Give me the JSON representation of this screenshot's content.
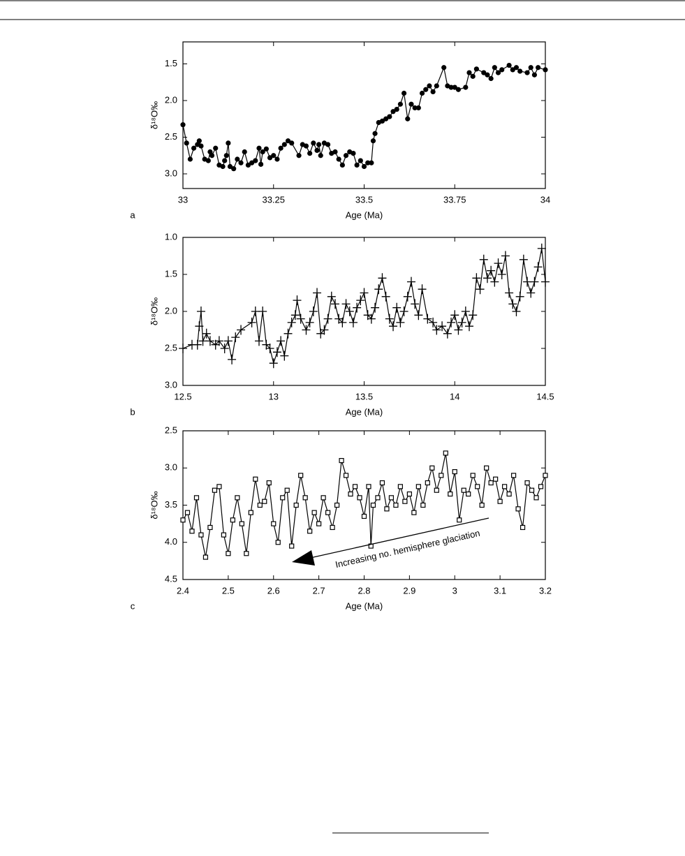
{
  "chart_data": [
    {
      "type": "line",
      "panel_label": "a",
      "x_label": "Age (Ma)",
      "y_label": "δ¹⁸O‰",
      "marker": "circle",
      "color": "#000000",
      "xlim": [
        33,
        34
      ],
      "ylim": [
        3.2,
        1.2
      ],
      "xticks": [
        33,
        33.25,
        33.5,
        33.75,
        34
      ],
      "yticks": [
        1.5,
        {
          "value": 2.0,
          "label": "2.0"
        },
        2.5,
        {
          "value": 3.0,
          "label": "3.0"
        }
      ],
      "x": [
        33.0,
        33.01,
        33.02,
        33.03,
        33.04,
        33.045,
        33.05,
        33.06,
        33.07,
        33.075,
        33.08,
        33.09,
        33.1,
        33.11,
        33.115,
        33.12,
        33.125,
        33.13,
        33.14,
        33.15,
        33.16,
        33.17,
        33.18,
        33.19,
        33.2,
        33.21,
        33.215,
        33.22,
        33.23,
        33.24,
        33.25,
        33.26,
        33.27,
        33.28,
        33.29,
        33.3,
        33.32,
        33.33,
        33.34,
        33.35,
        33.36,
        33.37,
        33.375,
        33.38,
        33.39,
        33.4,
        33.41,
        33.42,
        33.43,
        33.44,
        33.45,
        33.46,
        33.47,
        33.48,
        33.49,
        33.5,
        33.51,
        33.52,
        33.525,
        33.53,
        33.54,
        33.55,
        33.56,
        33.57,
        33.58,
        33.59,
        33.6,
        33.61,
        33.62,
        33.63,
        33.64,
        33.65,
        33.66,
        33.67,
        33.68,
        33.69,
        33.7,
        33.72,
        33.73,
        33.74,
        33.75,
        33.76,
        33.78,
        33.79,
        33.8,
        33.81,
        33.83,
        33.84,
        33.85,
        33.86,
        33.87,
        33.88,
        33.9,
        33.91,
        33.92,
        33.93,
        33.95,
        33.96,
        33.97,
        33.98,
        34.0
      ],
      "values": [
        2.33,
        2.58,
        2.8,
        2.65,
        2.6,
        2.55,
        2.62,
        2.8,
        2.82,
        2.7,
        2.75,
        2.65,
        2.88,
        2.9,
        2.82,
        2.75,
        2.58,
        2.9,
        2.93,
        2.8,
        2.85,
        2.7,
        2.88,
        2.85,
        2.82,
        2.65,
        2.87,
        2.7,
        2.66,
        2.78,
        2.75,
        2.8,
        2.65,
        2.6,
        2.55,
        2.58,
        2.75,
        2.6,
        2.62,
        2.72,
        2.58,
        2.68,
        2.6,
        2.75,
        2.58,
        2.6,
        2.72,
        2.7,
        2.8,
        2.88,
        2.75,
        2.7,
        2.72,
        2.88,
        2.82,
        2.9,
        2.85,
        2.85,
        2.55,
        2.45,
        2.3,
        2.28,
        2.25,
        2.22,
        2.15,
        2.12,
        2.05,
        1.9,
        2.25,
        2.05,
        2.1,
        2.1,
        1.9,
        1.85,
        1.8,
        1.88,
        1.8,
        1.55,
        1.8,
        1.82,
        1.82,
        1.85,
        1.82,
        1.62,
        1.67,
        1.57,
        1.62,
        1.65,
        1.7,
        1.55,
        1.62,
        1.58,
        1.52,
        1.58,
        1.55,
        1.6,
        1.62,
        1.55,
        1.65,
        1.55,
        1.58
      ]
    },
    {
      "type": "line",
      "panel_label": "b",
      "x_label": "Age (Ma)",
      "y_label": "δ¹⁸O‰",
      "marker": "plus",
      "color": "#000000",
      "xlim": [
        12.5,
        14.5
      ],
      "ylim": [
        3.0,
        1.0
      ],
      "xticks": [
        12.5,
        13,
        13.5,
        14,
        14.5
      ],
      "yticks": [
        {
          "value": 1.0,
          "label": "1.0"
        },
        1.5,
        {
          "value": 2.0,
          "label": "2.0"
        },
        2.5,
        {
          "value": 3.0,
          "label": "3.0"
        }
      ],
      "x": [
        12.5,
        12.55,
        12.58,
        12.59,
        12.6,
        12.61,
        12.63,
        12.65,
        12.68,
        12.7,
        12.73,
        12.75,
        12.77,
        12.79,
        12.82,
        12.88,
        12.9,
        12.92,
        12.94,
        12.96,
        12.98,
        13.0,
        13.02,
        13.04,
        13.06,
        13.08,
        13.1,
        13.12,
        13.13,
        13.15,
        13.18,
        13.2,
        13.22,
        13.24,
        13.26,
        13.28,
        13.3,
        13.32,
        13.34,
        13.36,
        13.38,
        13.4,
        13.42,
        13.44,
        13.46,
        13.48,
        13.5,
        13.52,
        13.54,
        13.56,
        13.58,
        13.6,
        13.62,
        13.64,
        13.66,
        13.68,
        13.7,
        13.72,
        13.74,
        13.76,
        13.78,
        13.8,
        13.82,
        13.85,
        13.88,
        13.9,
        13.93,
        13.96,
        13.98,
        14.0,
        14.02,
        14.04,
        14.06,
        14.08,
        14.1,
        14.12,
        14.14,
        14.16,
        14.18,
        14.2,
        14.22,
        14.24,
        14.26,
        14.28,
        14.3,
        14.32,
        14.34,
        14.36,
        14.38,
        14.4,
        14.42,
        14.44,
        14.46,
        14.48,
        14.5
      ],
      "values": [
        2.5,
        2.45,
        2.45,
        2.2,
        2.0,
        2.4,
        2.3,
        2.4,
        2.45,
        2.4,
        2.5,
        2.4,
        2.65,
        2.35,
        2.25,
        2.15,
        2.0,
        2.4,
        2.0,
        2.45,
        2.5,
        2.7,
        2.55,
        2.4,
        2.6,
        2.3,
        2.15,
        2.05,
        1.85,
        2.1,
        2.25,
        2.15,
        2.0,
        1.75,
        2.3,
        2.25,
        2.1,
        1.8,
        1.9,
        2.1,
        2.15,
        1.9,
        2.0,
        2.15,
        1.95,
        1.85,
        1.75,
        2.05,
        2.1,
        1.95,
        1.7,
        1.55,
        1.8,
        2.1,
        2.2,
        1.95,
        2.15,
        2.0,
        1.8,
        1.6,
        1.9,
        2.05,
        1.7,
        2.1,
        2.15,
        2.25,
        2.2,
        2.3,
        2.15,
        2.05,
        2.25,
        2.15,
        2.0,
        2.2,
        2.05,
        1.55,
        1.7,
        1.3,
        1.55,
        1.45,
        1.6,
        1.35,
        1.5,
        1.25,
        1.75,
        1.9,
        2.0,
        1.8,
        1.3,
        1.6,
        1.75,
        1.6,
        1.4,
        1.15,
        1.6
      ]
    },
    {
      "type": "line",
      "panel_label": "c",
      "x_label": "Age (Ma)",
      "y_label": "δ¹⁸O‰",
      "marker": "square",
      "color": "#000000",
      "annotation": "Increasing no. hemisphere glaciation",
      "xlim": [
        2.4,
        3.2
      ],
      "ylim": [
        4.5,
        2.5
      ],
      "xticks": [
        2.4,
        2.5,
        2.6,
        2.7,
        2.8,
        2.9,
        3,
        3.1,
        3.2
      ],
      "yticks": [
        2.5,
        {
          "value": 3.0,
          "label": "3.0"
        },
        3.5,
        {
          "value": 4.0,
          "label": "4.0"
        },
        4.5
      ],
      "x": [
        2.4,
        2.41,
        2.42,
        2.43,
        2.44,
        2.45,
        2.46,
        2.47,
        2.48,
        2.49,
        2.5,
        2.51,
        2.52,
        2.53,
        2.54,
        2.55,
        2.56,
        2.57,
        2.58,
        2.59,
        2.6,
        2.61,
        2.62,
        2.63,
        2.64,
        2.65,
        2.66,
        2.67,
        2.68,
        2.69,
        2.7,
        2.71,
        2.72,
        2.73,
        2.74,
        2.75,
        2.76,
        2.77,
        2.78,
        2.79,
        2.8,
        2.81,
        2.815,
        2.82,
        2.83,
        2.84,
        2.85,
        2.86,
        2.87,
        2.88,
        2.89,
        2.9,
        2.91,
        2.92,
        2.93,
        2.94,
        2.95,
        2.96,
        2.97,
        2.98,
        2.99,
        3.0,
        3.01,
        3.02,
        3.03,
        3.04,
        3.05,
        3.06,
        3.07,
        3.08,
        3.09,
        3.1,
        3.11,
        3.12,
        3.13,
        3.14,
        3.15,
        3.16,
        3.17,
        3.18,
        3.19,
        3.2
      ],
      "values": [
        3.7,
        3.6,
        3.85,
        3.4,
        3.9,
        4.2,
        3.8,
        3.3,
        3.25,
        3.9,
        4.15,
        3.7,
        3.4,
        3.75,
        4.15,
        3.6,
        3.15,
        3.5,
        3.45,
        3.2,
        3.75,
        4.0,
        3.4,
        3.3,
        4.05,
        3.5,
        3.1,
        3.4,
        3.85,
        3.6,
        3.75,
        3.4,
        3.6,
        3.8,
        3.5,
        2.9,
        3.1,
        3.35,
        3.25,
        3.4,
        3.65,
        3.25,
        4.05,
        3.5,
        3.4,
        3.2,
        3.55,
        3.4,
        3.5,
        3.25,
        3.45,
        3.35,
        3.6,
        3.25,
        3.5,
        3.2,
        3.0,
        3.3,
        3.1,
        2.8,
        3.35,
        3.05,
        3.7,
        3.3,
        3.35,
        3.1,
        3.25,
        3.5,
        3.0,
        3.2,
        3.15,
        3.45,
        3.25,
        3.35,
        3.1,
        3.55,
        3.8,
        3.2,
        3.3,
        3.4,
        3.25,
        3.1
      ]
    }
  ]
}
